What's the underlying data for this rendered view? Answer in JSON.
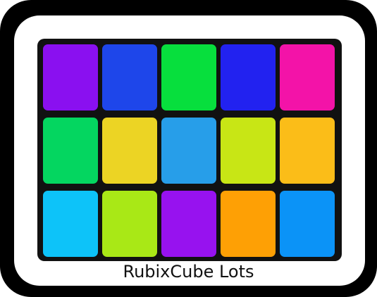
{
  "title": "RubixCube Lots",
  "tiles": [
    {
      "name": "tile-violet",
      "color": "#8a10f0"
    },
    {
      "name": "tile-blue",
      "color": "#1e46ea"
    },
    {
      "name": "tile-green",
      "color": "#07df3d"
    },
    {
      "name": "tile-royal-blue",
      "color": "#2222f0"
    },
    {
      "name": "tile-magenta",
      "color": "#f313a8"
    },
    {
      "name": "tile-emerald",
      "color": "#04d660"
    },
    {
      "name": "tile-yellow",
      "color": "#ecd424"
    },
    {
      "name": "tile-sky-blue",
      "color": "#279ee9"
    },
    {
      "name": "tile-lime",
      "color": "#c8e615"
    },
    {
      "name": "tile-amber",
      "color": "#fbbd18"
    },
    {
      "name": "tile-cyan",
      "color": "#0dc3f9"
    },
    {
      "name": "tile-yellow-green",
      "color": "#a9e816"
    },
    {
      "name": "tile-purple",
      "color": "#9712ef"
    },
    {
      "name": "tile-orange",
      "color": "#fea005"
    },
    {
      "name": "tile-azure",
      "color": "#0b93f7"
    }
  ]
}
